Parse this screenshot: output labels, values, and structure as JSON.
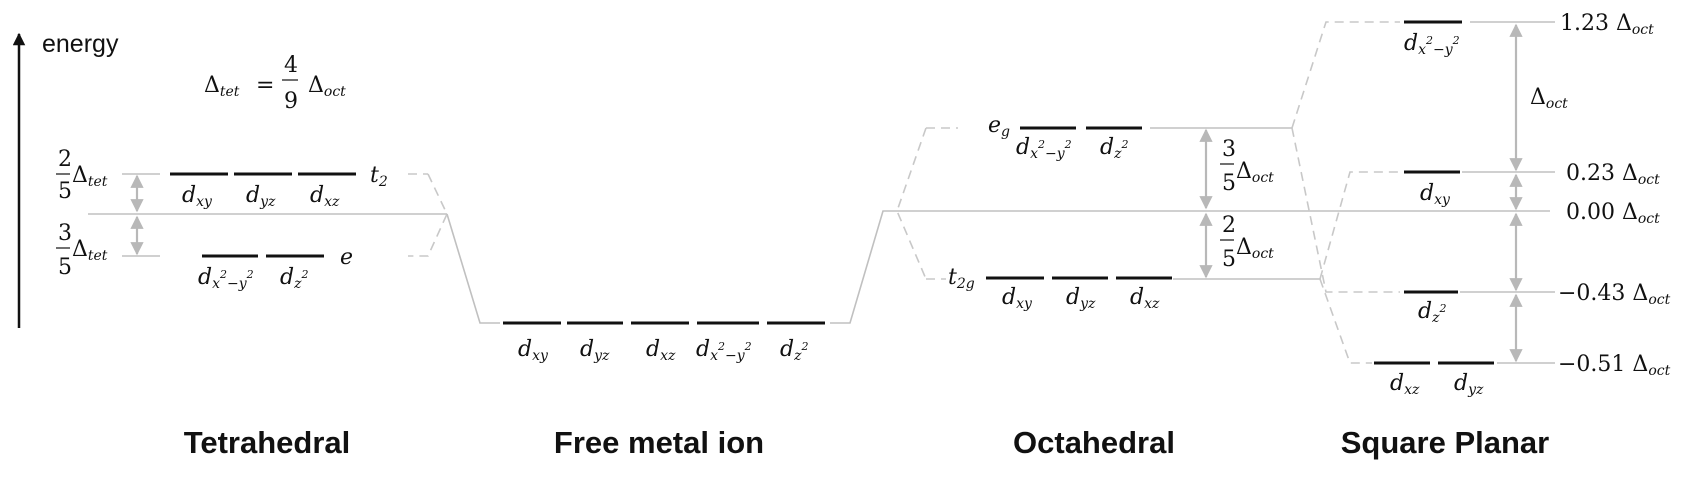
{
  "axis": {
    "label": "energy"
  },
  "tetrahedral_formula": {
    "lhs_sym": "Δ",
    "lhs_sub": "tet",
    "eq": "=",
    "num": "4",
    "den": "9",
    "rhs_sym": "Δ",
    "rhs_sub": "oct"
  },
  "tetrahedral": {
    "title": "Tetrahedral",
    "upper": {
      "label": "t",
      "label_sub": "2",
      "frac_num": "2",
      "frac_den": "5",
      "delta_sub": "tet",
      "orbitals": [
        {
          "base": "d",
          "sub": "xy"
        },
        {
          "base": "d",
          "sub": "yz"
        },
        {
          "base": "d",
          "sub": "xz"
        }
      ]
    },
    "lower": {
      "label": "e",
      "frac_num": "3",
      "frac_den": "5",
      "delta_sub": "tet",
      "orbitals": [
        {
          "base": "d",
          "sub": "x",
          "sup1": "2",
          "mid": "−y",
          "sup2": "2"
        },
        {
          "base": "d",
          "sub": "z",
          "sup1": "2"
        }
      ]
    }
  },
  "free_ion": {
    "title": "Free metal ion",
    "orbitals": [
      {
        "base": "d",
        "sub": "xy"
      },
      {
        "base": "d",
        "sub": "yz"
      },
      {
        "base": "d",
        "sub": "xz"
      },
      {
        "base": "d",
        "sub": "x",
        "sup1": "2",
        "mid": "−y",
        "sup2": "2"
      },
      {
        "base": "d",
        "sub": "z",
        "sup1": "2"
      }
    ]
  },
  "octahedral": {
    "title": "Octahedral",
    "upper": {
      "label": "e",
      "label_sub": "g",
      "frac_num": "3",
      "frac_den": "5",
      "delta_sub": "oct",
      "orbitals": [
        {
          "base": "d",
          "sub": "x",
          "sup1": "2",
          "mid": "−y",
          "sup2": "2"
        },
        {
          "base": "d",
          "sub": "z",
          "sup1": "2"
        }
      ]
    },
    "lower": {
      "label": "t",
      "label_sub": "2g",
      "frac_num": "2",
      "frac_den": "5",
      "delta_sub": "oct",
      "orbitals": [
        {
          "base": "d",
          "sub": "xy"
        },
        {
          "base": "d",
          "sub": "yz"
        },
        {
          "base": "d",
          "sub": "xz"
        }
      ]
    }
  },
  "square_planar": {
    "title": "Square Planar",
    "gap_label": {
      "sym": "Δ",
      "sub": "oct"
    },
    "levels": [
      {
        "value": "1.23",
        "sym": "Δ",
        "sub": "oct",
        "orbitals": [
          {
            "base": "d",
            "sub": "x",
            "sup1": "2",
            "mid": "−y",
            "sup2": "2"
          }
        ]
      },
      {
        "value": "0.23",
        "sym": "Δ",
        "sub": "oct",
        "orbitals": [
          {
            "base": "d",
            "sub": "xy"
          }
        ]
      },
      {
        "value": "0.00",
        "sym": "Δ",
        "sub": "oct",
        "orbitals": []
      },
      {
        "value": "−0.43",
        "sym": "Δ",
        "sub": "oct",
        "orbitals": [
          {
            "base": "d",
            "sub": "z",
            "sup1": "2"
          }
        ]
      },
      {
        "value": "−0.51",
        "sym": "Δ",
        "sub": "oct",
        "orbitals": [
          {
            "base": "d",
            "sub": "xz"
          },
          {
            "base": "d",
            "sub": "yz"
          }
        ]
      }
    ]
  }
}
